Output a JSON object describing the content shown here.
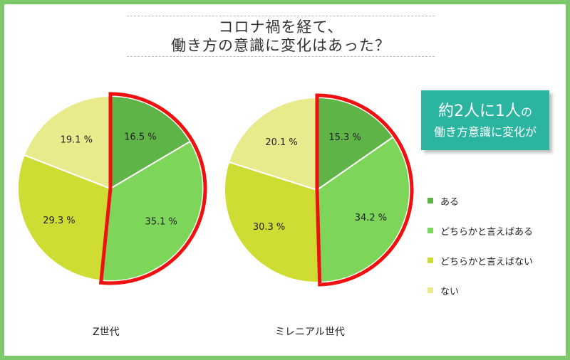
{
  "title": {
    "line1": "コロナ禍を経て、",
    "line2": "働き方の意識に変化はあった？"
  },
  "callout": {
    "part1": "約2人に1人",
    "part2": "の",
    "line2": "働き方意識に変化が"
  },
  "colors": {
    "aru": "#5fb447",
    "dochiraka_aru": "#7dd65a",
    "dochiraka_nai": "#cfdc33",
    "nai": "#e9ea8c",
    "highlight": "#ee1111",
    "accent": "#2bb5a0"
  },
  "chart_data": [
    {
      "type": "pie",
      "caption": "Z世代",
      "categories": [
        "ある",
        "どちらかと言えばある",
        "どちらかと言えばない",
        "ない"
      ],
      "values": [
        16.5,
        35.1,
        29.3,
        19.1
      ],
      "labels": [
        "16.5 %",
        "35.1 %",
        "29.3 %",
        "19.1 %"
      ],
      "highlighted": [
        "ある",
        "どちらかと言えばある"
      ]
    },
    {
      "type": "pie",
      "caption": "ミレニアル世代",
      "categories": [
        "ある",
        "どちらかと言えばある",
        "どちらかと言えばない",
        "ない"
      ],
      "values": [
        15.3,
        34.2,
        30.3,
        20.1
      ],
      "labels": [
        "15.3 %",
        "34.2 %",
        "30.3 %",
        "20.1 %"
      ],
      "highlighted": [
        "ある",
        "どちらかと言えばある"
      ]
    }
  ],
  "legend": [
    "ある",
    "どちらかと言えばある",
    "どちらかと言えばない",
    "ない"
  ]
}
